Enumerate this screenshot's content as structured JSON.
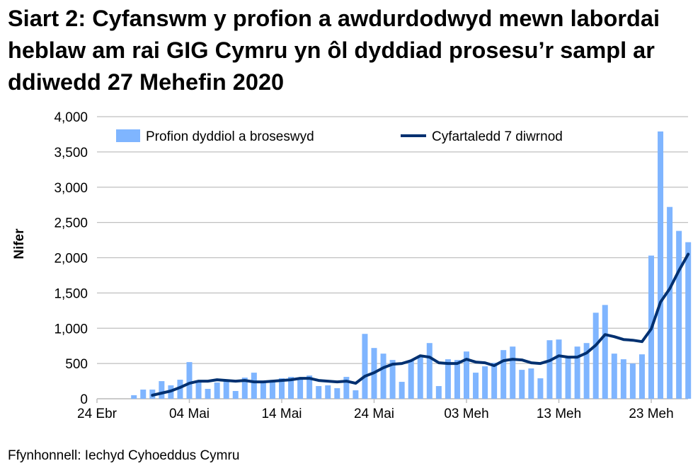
{
  "title": "Siart 2: Cyfanswm y profion a awdurdodwyd mewn labordai heblaw am rai GIG Cymru yn ôl dyddiad prosesu’r sampl ar ddiwedd 27 Mehefin 2020",
  "source": "Ffynhonnell: Iechyd Cyhoeddus Cymru",
  "chart_data": {
    "type": "bar+line",
    "title": "Siart 2: Cyfanswm y profion a awdurdodwyd mewn labordai heblaw am rai GIG Cymru yn ôl dyddiad prosesu’r sampl ar ddiwedd 27 Mehefin 2020",
    "ylabel": "Nifer",
    "xlabel": "",
    "ylim": [
      0,
      4000
    ],
    "yticks": [
      "0",
      "500",
      "1,000",
      "1,500",
      "2,000",
      "2,500",
      "3,000",
      "3,500",
      "4,000"
    ],
    "xticks": [
      "24 Ebr",
      "04 Mai",
      "14 Mai",
      "24 Mai",
      "03 Meh",
      "13 Meh",
      "23 Meh"
    ],
    "grid": true,
    "legend": "top",
    "categories": [
      "28 Ebr",
      "29 Ebr",
      "30 Ebr",
      "01 Mai",
      "02 Mai",
      "03 Mai",
      "04 Mai",
      "05 Mai",
      "06 Mai",
      "07 Mai",
      "08 Mai",
      "09 Mai",
      "10 Mai",
      "11 Mai",
      "12 Mai",
      "13 Mai",
      "14 Mai",
      "15 Mai",
      "16 Mai",
      "17 Mai",
      "18 Mai",
      "19 Mai",
      "20 Mai",
      "21 Mai",
      "22 Mai",
      "23 Mai",
      "24 Mai",
      "25 Mai",
      "26 Mai",
      "27 Mai",
      "28 Mai",
      "29 Mai",
      "30 Mai",
      "31 Mai",
      "01 Meh",
      "02 Meh",
      "03 Meh",
      "04 Meh",
      "05 Meh",
      "06 Meh",
      "07 Meh",
      "08 Meh",
      "09 Meh",
      "10 Meh",
      "11 Meh",
      "12 Meh",
      "13 Meh",
      "14 Meh",
      "15 Meh",
      "16 Meh",
      "17 Meh",
      "18 Meh",
      "19 Meh",
      "20 Meh",
      "21 Meh",
      "22 Meh",
      "23 Meh",
      "24 Meh",
      "25 Meh",
      "26 Meh",
      "27 Meh"
    ],
    "series": [
      {
        "name": "Profion dyddiol a broseswyd",
        "type": "bar",
        "color": "#7fb5ff",
        "values": [
          50,
          130,
          130,
          250,
          190,
          270,
          520,
          230,
          140,
          230,
          250,
          110,
          300,
          370,
          250,
          250,
          290,
          310,
          300,
          330,
          180,
          190,
          150,
          310,
          120,
          920,
          720,
          640,
          550,
          240,
          540,
          600,
          790,
          180,
          560,
          550,
          670,
          370,
          460,
          510,
          690,
          740,
          410,
          430,
          290,
          830,
          840,
          600,
          740,
          790,
          1220,
          1330,
          640,
          560,
          500,
          630,
          2030,
          3790,
          2720,
          2380,
          2220
        ]
      },
      {
        "name": "Cyfartaledd 7 diwrnod",
        "type": "line",
        "color": "#003070",
        "values": [
          null,
          null,
          50,
          80,
          110,
          160,
          220,
          250,
          250,
          270,
          260,
          250,
          260,
          240,
          240,
          250,
          260,
          270,
          290,
          290,
          260,
          250,
          240,
          250,
          220,
          320,
          370,
          440,
          490,
          500,
          540,
          610,
          590,
          510,
          500,
          500,
          560,
          520,
          510,
          470,
          540,
          560,
          550,
          510,
          500,
          540,
          610,
          590,
          590,
          650,
          760,
          910,
          880,
          840,
          830,
          810,
          990,
          1370,
          1560,
          1820,
          2050
        ]
      }
    ]
  }
}
